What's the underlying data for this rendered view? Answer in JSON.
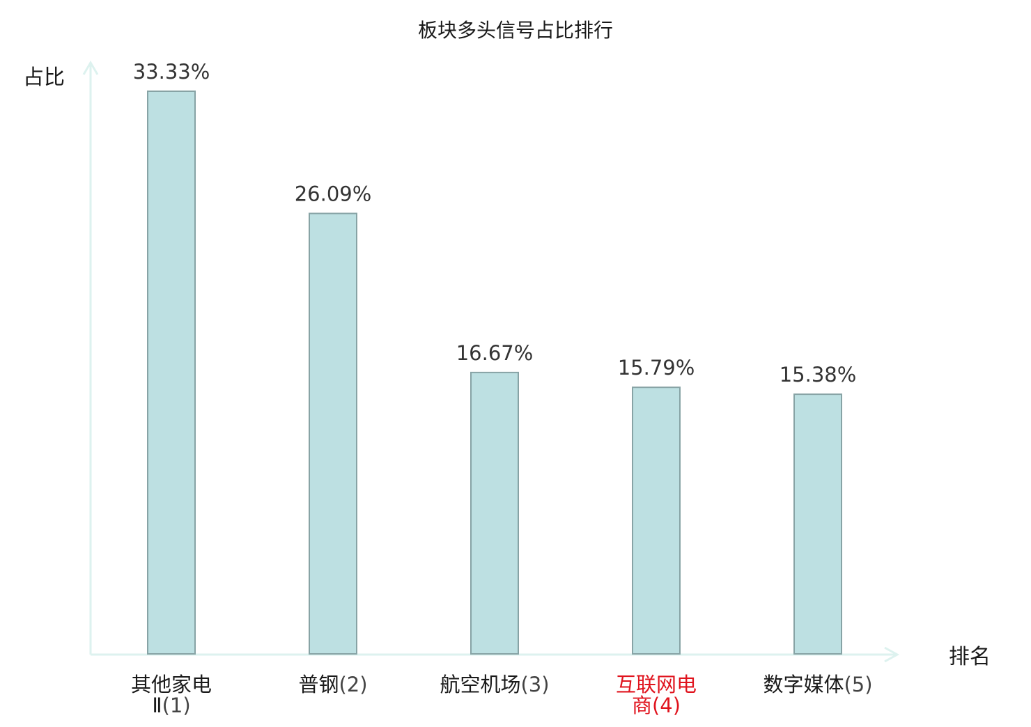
{
  "chart_data": {
    "type": "bar",
    "title": "板块多头信号占比排行",
    "xlabel": "排名",
    "ylabel": "占比",
    "categories": [
      {
        "name_lines": [
          "其他家电",
          "Ⅱ"
        ],
        "rank": "(1)",
        "highlight": false
      },
      {
        "name_lines": [
          "普钢"
        ],
        "rank": "(2)",
        "highlight": false
      },
      {
        "name_lines": [
          "航空机场"
        ],
        "rank": "(3)",
        "highlight": false
      },
      {
        "name_lines": [
          "互联网电",
          "商"
        ],
        "rank": "(4)",
        "highlight": true
      },
      {
        "name_lines": [
          "数字媒体"
        ],
        "rank": "(5)",
        "highlight": false
      }
    ],
    "values": [
      33.33,
      26.09,
      16.67,
      15.79,
      15.38
    ],
    "value_labels": [
      "33.33%",
      "26.09%",
      "16.67%",
      "15.79%",
      "15.38%"
    ],
    "ylim": [
      0,
      33.33
    ],
    "grid": false,
    "legend": "none",
    "colors": {
      "bar_fill": "#bde0e2",
      "bar_stroke": "#87a3a5",
      "axis": "#ddf2ef",
      "highlight_text": "#e0141e",
      "normal_text": "#1a1a1a",
      "rank_text": "#444444"
    }
  }
}
